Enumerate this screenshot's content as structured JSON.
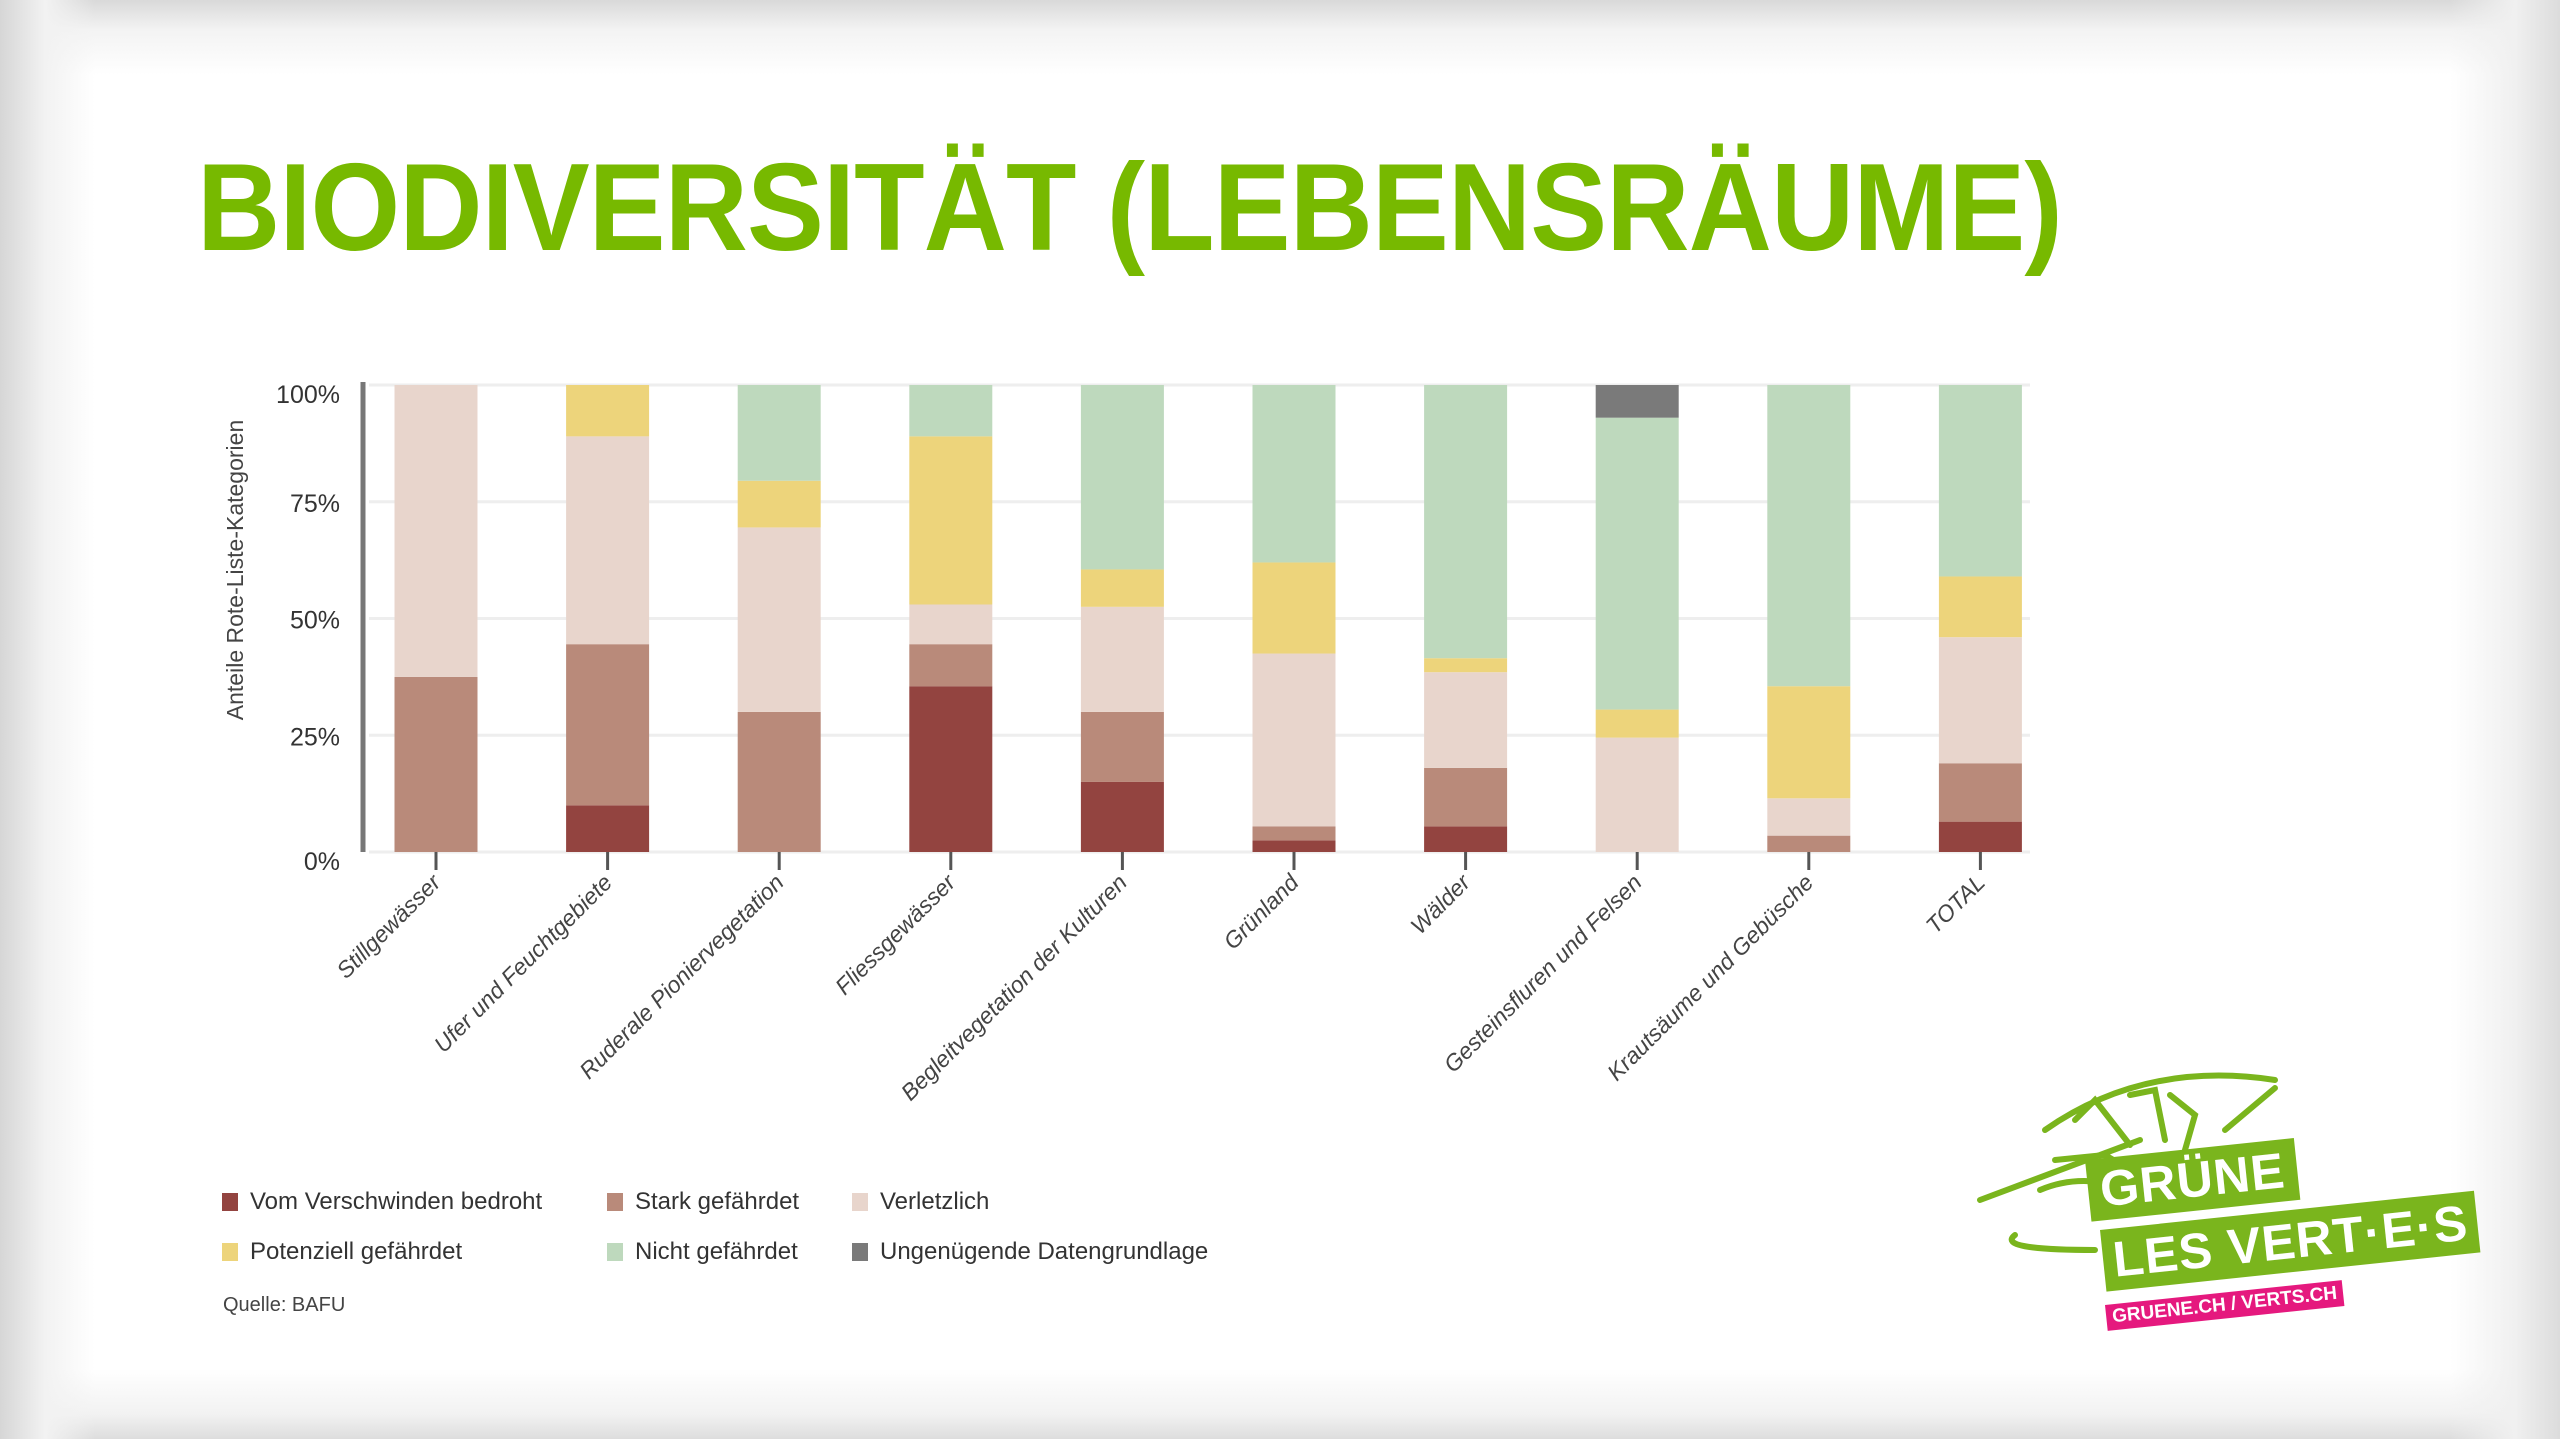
{
  "slide": {
    "title": "BIODIVERSITÄT (LEBENSRÄUME)",
    "source": "Quelle: BAFU"
  },
  "logo": {
    "line1": "GRÜNE",
    "line2": "LES VERT·E·S",
    "url": "GRUENE.CH / VERTS.CH",
    "green": "#7ab51d",
    "pink": "#e5197e"
  },
  "chart_data": {
    "type": "bar",
    "stacked": true,
    "title": "",
    "xlabel": "",
    "ylabel": "Anteile Rote-Liste-Kategorien",
    "ylim": [
      0,
      100
    ],
    "yticks": [
      "0%",
      "25%",
      "50%",
      "75%",
      "100%"
    ],
    "ytick_values": [
      0,
      25,
      50,
      75,
      100
    ],
    "grid": true,
    "legend_position": "bottom",
    "categories": [
      "Stillgewässer",
      "Ufer und Feuchtgebiete",
      "Ruderale Pioniervegetation",
      "Fliessgewässer",
      "Begleitvegetation der Kulturen",
      "Grünland",
      "Wälder",
      "Gesteinsfluren und Felsen",
      "Krautsäume und Gebüsche",
      "TOTAL"
    ],
    "series": [
      {
        "name": "Vom Verschwinden bedroht",
        "color": "#934440",
        "values": [
          0,
          10,
          0,
          35.5,
          15,
          2.5,
          5.5,
          0,
          0,
          6.5
        ]
      },
      {
        "name": "Stark gefährdet",
        "color": "#b98a7a",
        "values": [
          37.5,
          34.5,
          30,
          9,
          15,
          3,
          12.5,
          0,
          3.5,
          12.5
        ]
      },
      {
        "name": "Verletzlich",
        "color": "#e8d5cc",
        "values": [
          62.5,
          44.5,
          39.5,
          8.5,
          22.5,
          37,
          20.5,
          24.5,
          8,
          27
        ]
      },
      {
        "name": "Potenziell gefährdet",
        "color": "#edd47b",
        "values": [
          0,
          11,
          10,
          36,
          8,
          19.5,
          3,
          6,
          24,
          13
        ]
      },
      {
        "name": "Nicht gefährdet",
        "color": "#bed9bd",
        "values": [
          0,
          0,
          20.5,
          11,
          39.5,
          38,
          58.5,
          62.5,
          64.5,
          41
        ]
      },
      {
        "name": "Ungenügende Datengrundlage",
        "color": "#7a7a7a",
        "values": [
          0,
          0,
          0,
          0,
          0,
          0,
          0,
          7,
          0,
          0
        ]
      }
    ]
  }
}
